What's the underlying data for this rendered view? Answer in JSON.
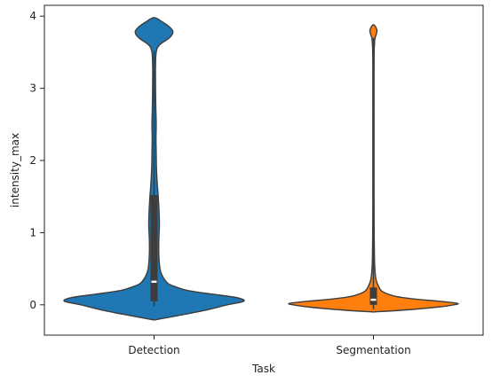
{
  "chart_data": {
    "type": "violin",
    "title": "",
    "xlabel": "Task",
    "ylabel": "intensity_max",
    "ylim": [
      -0.42,
      4.15
    ],
    "yticks": [
      0,
      1,
      2,
      3,
      4
    ],
    "categories": [
      "Detection",
      "Segmentation"
    ],
    "grid": false,
    "legend": "none",
    "series": [
      {
        "category": "Detection",
        "color": "#1f77b4",
        "box": {
          "q1": 0.05,
          "median": 0.32,
          "q3": 1.52,
          "whisker_low": -0.02,
          "whisker_high": 3.52
        },
        "density": [
          [
            -0.21,
            0.0
          ],
          [
            -0.15,
            0.2
          ],
          [
            -0.08,
            0.42
          ],
          [
            0.0,
            0.62
          ],
          [
            0.05,
            0.76
          ],
          [
            0.1,
            0.7
          ],
          [
            0.15,
            0.48
          ],
          [
            0.2,
            0.28
          ],
          [
            0.25,
            0.18
          ],
          [
            0.3,
            0.115
          ],
          [
            0.4,
            0.07
          ],
          [
            0.5,
            0.05
          ],
          [
            0.7,
            0.04
          ],
          [
            0.9,
            0.04
          ],
          [
            1.1,
            0.045
          ],
          [
            1.3,
            0.042
          ],
          [
            1.5,
            0.035
          ],
          [
            1.7,
            0.026
          ],
          [
            1.9,
            0.02
          ],
          [
            2.1,
            0.018
          ],
          [
            2.3,
            0.016
          ],
          [
            2.5,
            0.018
          ],
          [
            2.7,
            0.015
          ],
          [
            2.9,
            0.013
          ],
          [
            3.1,
            0.012
          ],
          [
            3.3,
            0.012
          ],
          [
            3.5,
            0.018
          ],
          [
            3.6,
            0.045
          ],
          [
            3.7,
            0.13
          ],
          [
            3.78,
            0.16
          ],
          [
            3.85,
            0.13
          ],
          [
            3.92,
            0.07
          ],
          [
            3.98,
            0.0
          ]
        ]
      },
      {
        "category": "Segmentation",
        "color": "#ff7f0e",
        "box": {
          "q1": 0.0,
          "median": 0.07,
          "q3": 0.24,
          "whisker_low": -0.06,
          "whisker_high": 3.7
        },
        "density": [
          [
            -0.1,
            0.0
          ],
          [
            -0.07,
            0.28
          ],
          [
            -0.03,
            0.55
          ],
          [
            0.0,
            0.68
          ],
          [
            0.02,
            0.71
          ],
          [
            0.05,
            0.55
          ],
          [
            0.08,
            0.35
          ],
          [
            0.12,
            0.18
          ],
          [
            0.18,
            0.08
          ],
          [
            0.25,
            0.045
          ],
          [
            0.35,
            0.022
          ],
          [
            0.5,
            0.012
          ],
          [
            0.7,
            0.008
          ],
          [
            1.0,
            0.006
          ],
          [
            1.5,
            0.005
          ],
          [
            2.0,
            0.005
          ],
          [
            2.5,
            0.005
          ],
          [
            3.0,
            0.005
          ],
          [
            3.5,
            0.006
          ],
          [
            3.68,
            0.012
          ],
          [
            3.74,
            0.022
          ],
          [
            3.8,
            0.03
          ],
          [
            3.86,
            0.015
          ],
          [
            3.88,
            0.0
          ]
        ]
      }
    ]
  }
}
